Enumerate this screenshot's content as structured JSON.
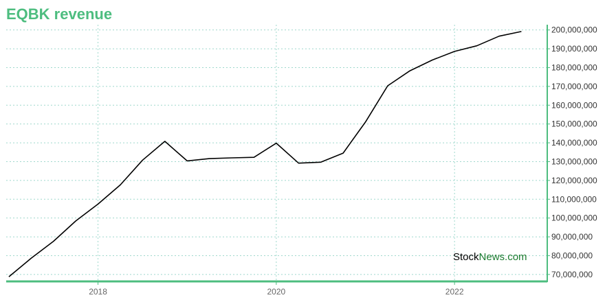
{
  "title": "EQBK revenue",
  "watermark": {
    "part1": "Stock",
    "part2": "News",
    "part3": ".com"
  },
  "colors": {
    "accent": "#4dbd7f",
    "grid": "#9ed8cc",
    "line": "#000000",
    "watermark_dark": "#000000",
    "watermark_green": "#1a7a2e"
  },
  "chart_data": {
    "type": "line",
    "title": "EQBK revenue",
    "xlabel": "",
    "ylabel": "",
    "x_ticks": [
      {
        "label": "2018",
        "value": 2018
      },
      {
        "label": "2020",
        "value": 2020
      },
      {
        "label": "2022",
        "value": 2022
      }
    ],
    "y_ticks": [
      {
        "label": "70,000,000",
        "value": 70000000
      },
      {
        "label": "80,000,000",
        "value": 80000000
      },
      {
        "label": "90,000,000",
        "value": 90000000
      },
      {
        "label": "100,000,000",
        "value": 100000000
      },
      {
        "label": "110,000,000",
        "value": 110000000
      },
      {
        "label": "120,000,000",
        "value": 120000000
      },
      {
        "label": "130,000,000",
        "value": 130000000
      },
      {
        "label": "140,000,000",
        "value": 140000000
      },
      {
        "label": "150,000,000",
        "value": 150000000
      },
      {
        "label": "160,000,000",
        "value": 160000000
      },
      {
        "label": "170,000,000",
        "value": 170000000
      },
      {
        "label": "180,000,000",
        "value": 180000000
      },
      {
        "label": "190,000,000",
        "value": 190000000
      },
      {
        "label": "200,000,000",
        "value": 200000000
      }
    ],
    "xlim": [
      2016.97,
      2023.04
    ],
    "ylim": [
      66300000,
      202800000
    ],
    "grid": true,
    "series": [
      {
        "x": [
          2017.0,
          2017.25,
          2017.5,
          2017.75,
          2018.0,
          2018.25,
          2018.5,
          2018.75,
          2019.0,
          2019.25,
          2019.5,
          2019.75,
          2020.0,
          2020.25,
          2020.5,
          2020.75,
          2021.0,
          2021.25,
          2021.5,
          2021.75,
          2022.0,
          2022.25,
          2022.5,
          2022.75
        ],
        "y": [
          68800000,
          78600000,
          87600000,
          98400000,
          107400000,
          117600000,
          130800000,
          140800000,
          130400000,
          131600000,
          132000000,
          132300000,
          139800000,
          129200000,
          129700000,
          134500000,
          151000000,
          170300000,
          178300000,
          184000000,
          188600000,
          191600000,
          196700000,
          199200000
        ]
      }
    ]
  }
}
